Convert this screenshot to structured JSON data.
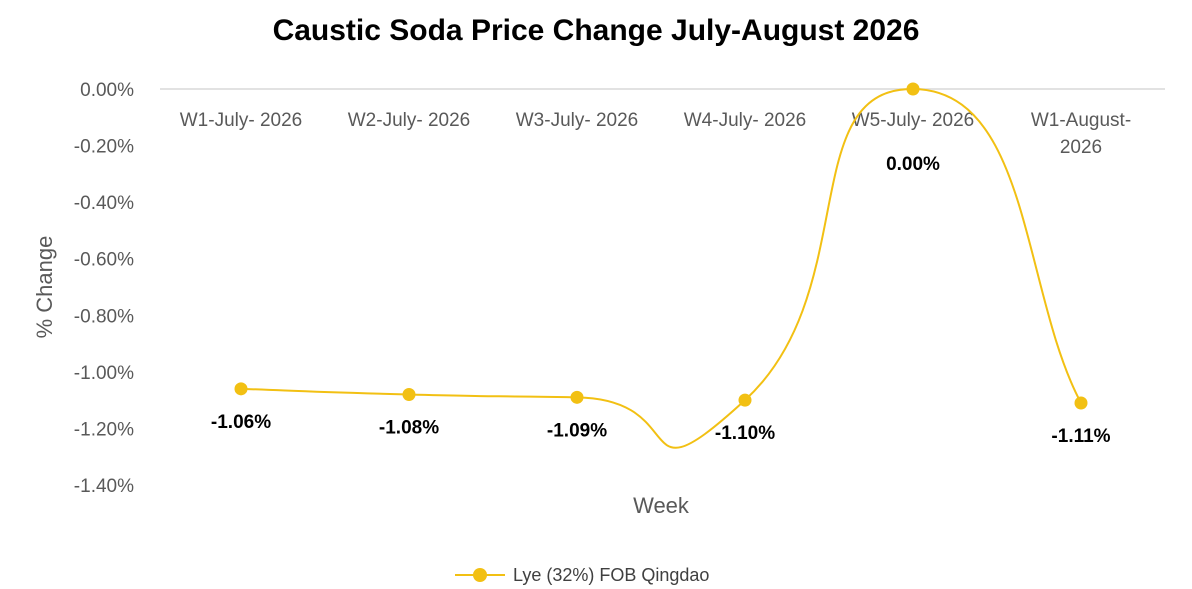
{
  "chart_data": {
    "type": "line",
    "title": "Caustic Soda Price Change July-August 2026",
    "xlabel": "Week",
    "ylabel": "% Change",
    "categories": [
      [
        "W1-July- 2026"
      ],
      [
        "W2-July- 2026"
      ],
      [
        "W3-July- 2026"
      ],
      [
        "W4-July- 2026"
      ],
      [
        "W5-July- 2026"
      ],
      [
        "W1-August-",
        "2026"
      ]
    ],
    "series": [
      {
        "name": "Lye (32%) FOB Qingdao",
        "values": [
          -1.06,
          -1.08,
          -1.09,
          -1.1,
          0.0,
          -1.11
        ],
        "labels": [
          "-1.06%",
          "-1.08%",
          "-1.09%",
          "-1.10%",
          "0.00%",
          "-1.11%"
        ],
        "color": "#F2C013"
      }
    ],
    "ylim": [
      -1.4,
      0.0
    ],
    "yticks": [
      0.0,
      -0.2,
      -0.4,
      -0.6,
      -0.8,
      -1.0,
      -1.2,
      -1.4
    ],
    "ytick_labels": [
      "0.00%",
      "-0.20%",
      "-0.40%",
      "-0.60%",
      "-0.80%",
      "-1.00%",
      "-1.20%",
      "-1.40%"
    ],
    "legend_position": "bottom",
    "grid": false,
    "smooth": true
  }
}
